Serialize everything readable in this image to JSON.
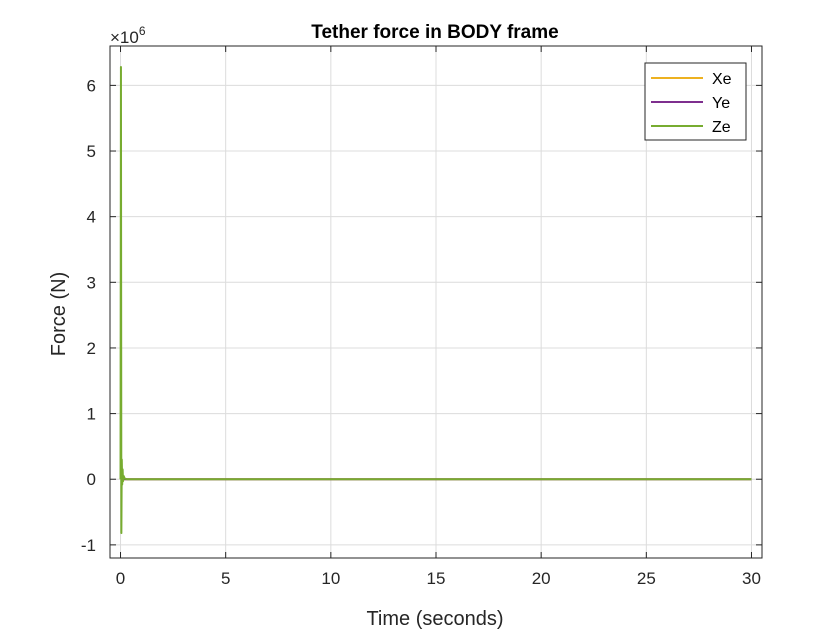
{
  "chart_data": {
    "type": "line",
    "title": "Tether force in BODY frame",
    "xlabel": "Time (seconds)",
    "ylabel": "Force (N)",
    "y_exponent_label": "×10",
    "y_exponent_power": "6",
    "y_scale_factor": 1000000,
    "xlim": [
      -0.5,
      30.5
    ],
    "ylim": [
      -1.2,
      6.6
    ],
    "x_ticks": [
      0,
      5,
      10,
      15,
      20,
      25,
      30
    ],
    "x_tick_labels": [
      "0",
      "5",
      "10",
      "15",
      "20",
      "25",
      "30"
    ],
    "y_ticks": [
      -1,
      0,
      1,
      2,
      3,
      4,
      5,
      6
    ],
    "y_tick_labels": [
      "-1",
      "0",
      "1",
      "2",
      "3",
      "4",
      "5",
      "6"
    ],
    "grid": true,
    "legend_position": "top-right",
    "series": [
      {
        "name": "Xe",
        "color": "#EDB120",
        "x": [
          0,
          0.03,
          0.06,
          0.1,
          0.15,
          0.3,
          0.5,
          1,
          30
        ],
        "y": [
          0,
          0.05,
          0.02,
          0.01,
          0,
          0,
          0,
          0,
          0
        ]
      },
      {
        "name": "Ye",
        "color": "#7E2F8E",
        "x": [
          0,
          0.03,
          0.06,
          0.1,
          0.15,
          0.3,
          0.5,
          1,
          30
        ],
        "y": [
          0,
          0.02,
          -0.01,
          0,
          0,
          0,
          0,
          0,
          0
        ]
      },
      {
        "name": "Ze",
        "color": "#77AC30",
        "x": [
          0,
          0.02,
          0.04,
          0.06,
          0.08,
          0.1,
          0.12,
          0.15,
          0.2,
          0.3,
          0.5,
          1,
          5,
          10,
          15,
          20,
          25,
          30
        ],
        "y": [
          0,
          6.28,
          -0.82,
          0.3,
          -0.08,
          0.15,
          -0.03,
          0.05,
          0.01,
          0.0,
          0.0,
          0.0,
          0.0,
          0.0,
          0.0,
          0.0,
          0.0,
          0.0
        ]
      }
    ]
  }
}
